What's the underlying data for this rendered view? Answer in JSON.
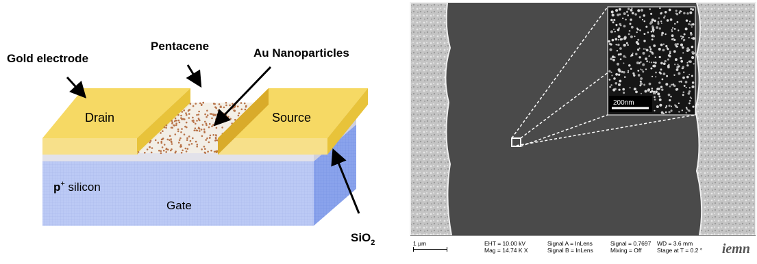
{
  "diagram": {
    "labels": {
      "gold_electrode": "Gold electrode",
      "pentacene": "Pentacene",
      "au_nanoparticles": "Au Nanoparticles",
      "drain": "Drain",
      "source": "Source",
      "p_plus_silicon_base": "p",
      "p_plus_silicon_sup": "+",
      "p_plus_silicon_rest": " silicon",
      "gate": "Gate",
      "sio2_base": "SiO",
      "sio2_sub": "2"
    },
    "colors": {
      "gold": "#f2d35a",
      "silicon": "#b9c6f2",
      "oxide": "#e2e2ea",
      "particles": "#b8744a"
    }
  },
  "sem": {
    "inset_scale_bar": "200nm",
    "footer": {
      "scale_bar": "1 µm",
      "eht": "EHT = 10.00 kV",
      "mag": "Mag = 14.74 K X",
      "signal_a": "Signal A = InLens",
      "signal_b": "Signal B = InLens",
      "signal": "Signal = 0.7697",
      "mixing": "Mixing = Off",
      "wd": "WD =  3.6 mm",
      "stage": "Stage at T =  0.2 °",
      "logo": "iemn"
    }
  }
}
